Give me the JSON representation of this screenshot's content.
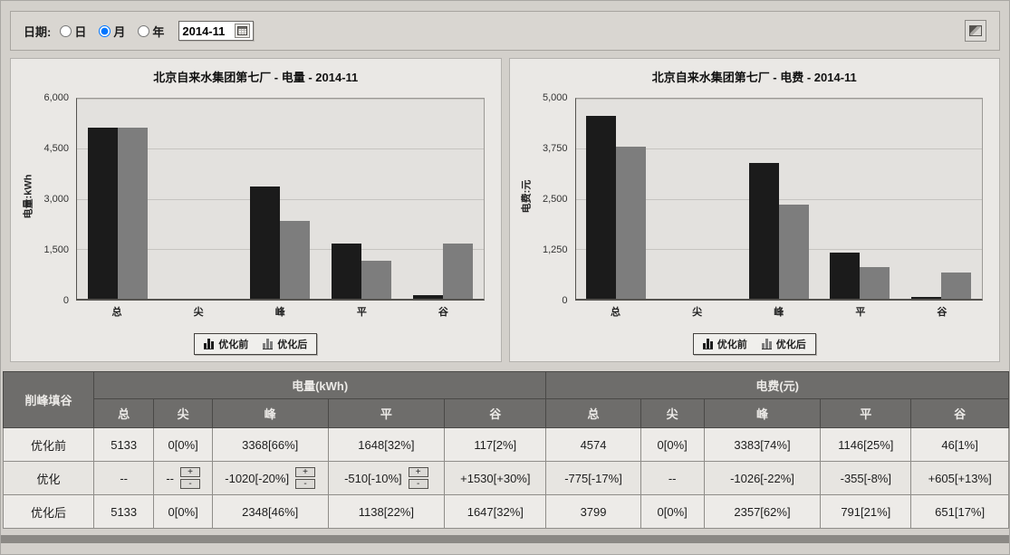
{
  "toolbar": {
    "date_label": "日期:",
    "radios": [
      {
        "id": "day",
        "label": "日",
        "checked": false
      },
      {
        "id": "month",
        "label": "月",
        "checked": true
      },
      {
        "id": "year",
        "label": "年",
        "checked": false
      }
    ],
    "date_value": "2014-11",
    "icons": {
      "calendar": "calendar-grid",
      "export": "image-export"
    }
  },
  "chart_data": [
    {
      "type": "bar",
      "title": "北京自来水集团第七厂 - 电量 - 2014-11",
      "ylabel": "电量:kWh",
      "xlabel": "",
      "categories": [
        "总",
        "尖",
        "峰",
        "平",
        "谷"
      ],
      "series": [
        {
          "name": "优化前",
          "color": "#1b1b1b",
          "values": [
            5133,
            0,
            3368,
            1648,
            117
          ]
        },
        {
          "name": "优化后",
          "color": "#7d7d7d",
          "values": [
            5133,
            0,
            2348,
            1138,
            1647
          ]
        }
      ],
      "ylim": [
        0,
        6000
      ],
      "yticks": [
        "6,000",
        "4,500",
        "3,000",
        "1,500",
        "0"
      ],
      "grid": true,
      "legend_position": "bottom"
    },
    {
      "type": "bar",
      "title": "北京自来水集团第七厂 - 电费 - 2014-11",
      "ylabel": "电费:元",
      "xlabel": "",
      "categories": [
        "总",
        "尖",
        "峰",
        "平",
        "谷"
      ],
      "series": [
        {
          "name": "优化前",
          "color": "#1b1b1b",
          "values": [
            4574,
            0,
            3383,
            1146,
            46
          ]
        },
        {
          "name": "优化后",
          "color": "#7d7d7d",
          "values": [
            3799,
            0,
            2357,
            791,
            651
          ]
        }
      ],
      "ylim": [
        0,
        5000
      ],
      "yticks": [
        "5,000",
        "3,750",
        "2,500",
        "1,250",
        "0"
      ],
      "grid": true,
      "legend_position": "bottom"
    }
  ],
  "table": {
    "corner_header": "削峰填谷",
    "groups": [
      {
        "label": "电量(kWh)"
      },
      {
        "label": "电费(元)"
      }
    ],
    "subheaders": [
      "总",
      "尖",
      "峰",
      "平",
      "谷",
      "总",
      "尖",
      "峰",
      "平",
      "谷"
    ],
    "rows": [
      {
        "label": "优化前",
        "cells": [
          "5133",
          "0[0%]",
          "3368[66%]",
          "1648[32%]",
          "117[2%]",
          "4574",
          "0[0%]",
          "3383[74%]",
          "1146[25%]",
          "46[1%]"
        ],
        "steppers": []
      },
      {
        "label": "优化",
        "cells": [
          "--",
          "--",
          "-1020[-20%]",
          "-510[-10%]",
          "+1530[+30%]",
          "-775[-17%]",
          "--",
          "-1026[-22%]",
          "-355[-8%]",
          "+605[+13%]"
        ],
        "steppers": [
          1,
          2,
          3
        ]
      },
      {
        "label": "优化后",
        "cells": [
          "5133",
          "0[0%]",
          "2348[46%]",
          "1138[22%]",
          "1647[32%]",
          "3799",
          "0[0%]",
          "2357[62%]",
          "791[21%]",
          "651[17%]"
        ],
        "steppers": []
      }
    ],
    "stepper": {
      "plus": "+",
      "minus": "-"
    }
  },
  "colors": {
    "bar_before": "#1b1b1b",
    "bar_after": "#7d7d7d",
    "table_header_bg": "#6e6d6b",
    "page_bg": "#d3d0cb"
  }
}
